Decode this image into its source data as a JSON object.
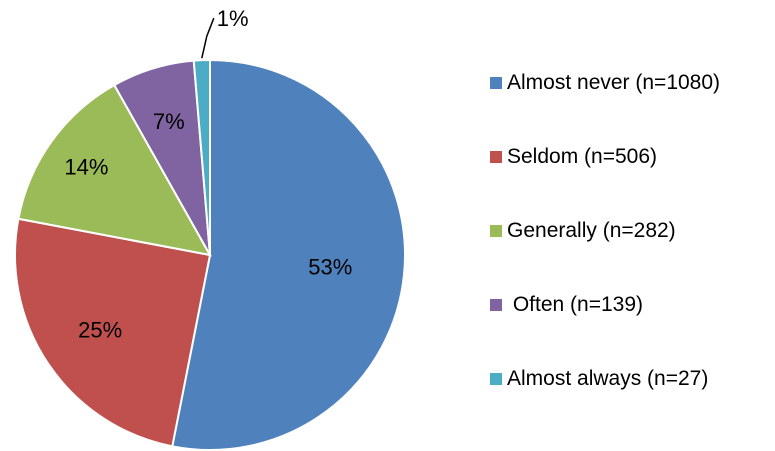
{
  "chart_data": {
    "type": "pie",
    "title": "",
    "slices": [
      {
        "label": "Almost never (n=1080)",
        "value": 1080,
        "percent_label": "53%",
        "color": "#4F81BD"
      },
      {
        "label": "Seldom (n=506)",
        "value": 506,
        "percent_label": "25%",
        "color": "#C0504D"
      },
      {
        "label": "Generally (n=282)",
        "value": 282,
        "percent_label": "14%",
        "color": "#9BBB59"
      },
      {
        "label": " Often (n=139)",
        "value": 139,
        "percent_label": "7%",
        "color": "#8064A2"
      },
      {
        "label": "Almost always (n=27)",
        "value": 27,
        "percent_label": "1%",
        "color": "#4BACC6"
      }
    ],
    "legend_position": "right"
  }
}
